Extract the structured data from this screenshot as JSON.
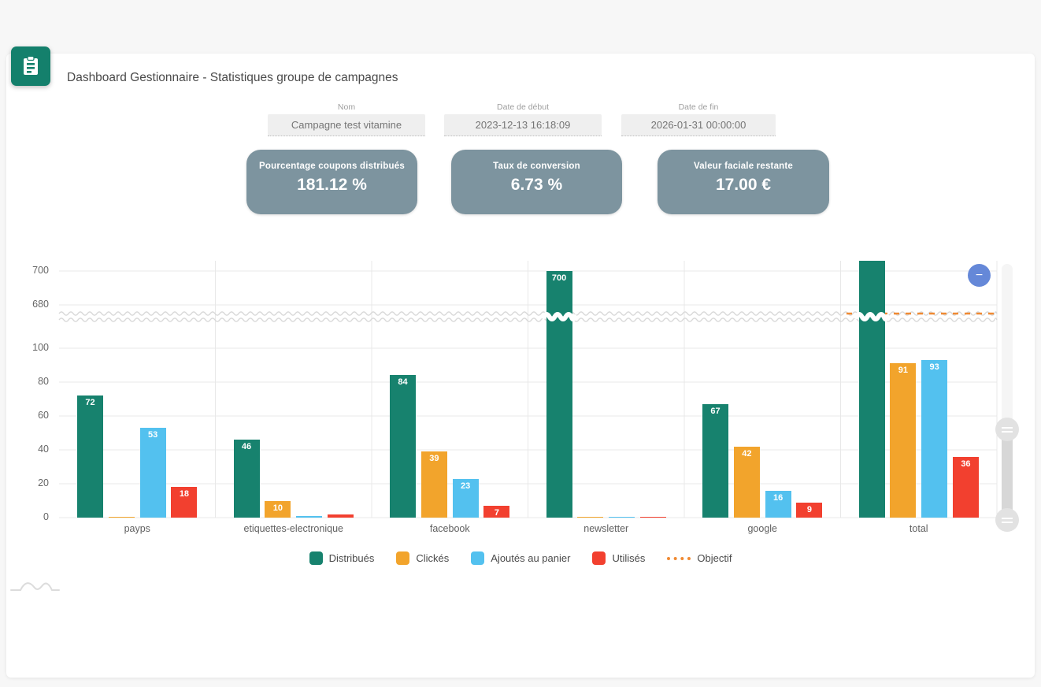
{
  "header": {
    "title": "Dashboard Gestionnaire - Statistiques groupe de campagnes",
    "icon": "clipboard-icon",
    "icon_color": "#14806C"
  },
  "fields": [
    {
      "label": "Nom",
      "value": "Campagne test vitamine"
    },
    {
      "label": "Date de début",
      "value": "2023-12-13 16:18:09"
    },
    {
      "label": "Date de fin",
      "value": "2026-01-31 00:00:00"
    }
  ],
  "stat_cards": [
    {
      "label": "Pourcentage coupons distribués",
      "value": "181.12 %"
    },
    {
      "label": "Taux de conversion",
      "value": "6.73 %"
    },
    {
      "label": "Valeur faciale restante",
      "value": "17.00 €"
    }
  ],
  "chart_data": {
    "type": "bar",
    "categories": [
      "payps",
      "etiquettes-electronique",
      "facebook",
      "newsletter",
      "google",
      "total"
    ],
    "series": [
      {
        "name": "Distribués",
        "color": "#17826E",
        "values": [
          72,
          46,
          84,
          700,
          67,
          null
        ]
      },
      {
        "name": "Clickés",
        "color": "#F2A42C",
        "values": [
          0,
          10,
          39,
          0,
          42,
          91
        ]
      },
      {
        "name": "Ajoutés au panier",
        "color": "#53C1EF",
        "values": [
          53,
          1,
          23,
          0,
          16,
          93
        ]
      },
      {
        "name": "Utilisés",
        "color": "#F2402F",
        "values": [
          18,
          2,
          7,
          0,
          9,
          36
        ]
      }
    ],
    "objectif_line": {
      "name": "Objectif",
      "color": "#F08A33",
      "style": "dashed",
      "note": "dashed target line visible only over the total category, at the axis-break level"
    },
    "notes": "total Distribués bar is clipped above the 700 gridline; its value label is not visible. Axis has a break (wavy lines) between 100 and 680.",
    "y_ticks": [
      0,
      20,
      40,
      60,
      80,
      100,
      680,
      700
    ],
    "axis_break": [
      100,
      680
    ],
    "grid": true,
    "legend_position": "bottom",
    "xlabel": "",
    "ylabel": ""
  },
  "chart_controls": {
    "zoom_out_label": "−",
    "range_slider": {
      "orientation": "vertical",
      "handles": 2
    }
  },
  "misc": {
    "corner_glyph": "mini-area-chart-icon"
  }
}
